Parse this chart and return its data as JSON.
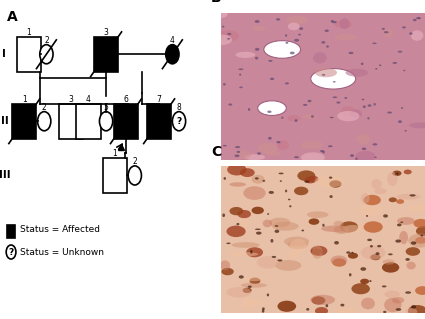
{
  "fig_width": 4.25,
  "fig_height": 3.19,
  "background_color": "#ffffff",
  "panel_A_label": "A",
  "panel_B_label": "B",
  "panel_C_label": "C",
  "legend_affected_label": "Status = Affected",
  "legend_unknown_label": "Status = Unknown",
  "generation_labels": [
    "I",
    "II",
    "III"
  ],
  "image_B_path": null,
  "image_C_path": null
}
